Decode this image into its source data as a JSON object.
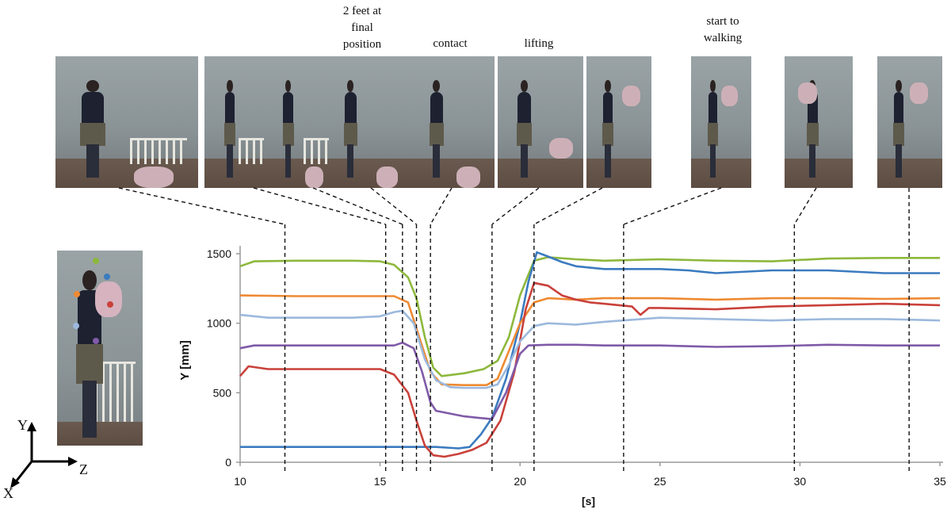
{
  "phase_labels": [
    {
      "id": "feet",
      "text": "2 feet at\nfinal\nposition"
    },
    {
      "id": "contact",
      "text": "contact"
    },
    {
      "id": "lifting",
      "text": "lifting"
    },
    {
      "id": "walking",
      "text": "start to\nwalking"
    }
  ],
  "axes_icon": {
    "y": "Y",
    "x": "X",
    "z": "Z"
  },
  "marker_colors": [
    "#8db83c",
    "#3b7bbf",
    "#ee8a33",
    "#c9413a",
    "#9cb9dd",
    "#7f5aa8"
  ],
  "chart_data": {
    "type": "line",
    "title": "",
    "xlabel": "[s]",
    "ylabel": "Y [mm]",
    "xlim": [
      10,
      35
    ],
    "ylim": [
      0,
      1500
    ],
    "x_ticks": [
      10,
      15,
      20,
      25,
      30,
      35
    ],
    "y_ticks": [
      0,
      500,
      1000,
      1500
    ],
    "grid": false,
    "legend": "none",
    "event_times": [
      11.6,
      15.2,
      15.8,
      16.3,
      16.8,
      19.0,
      20.5,
      23.7,
      29.8,
      33.9
    ],
    "series": [
      {
        "color": "#8db83c",
        "points": [
          [
            10,
            1410
          ],
          [
            10.5,
            1445
          ],
          [
            12,
            1450
          ],
          [
            14,
            1450
          ],
          [
            15,
            1445
          ],
          [
            15.5,
            1420
          ],
          [
            16,
            1330
          ],
          [
            16.3,
            1180
          ],
          [
            16.6,
            900
          ],
          [
            16.9,
            680
          ],
          [
            17.2,
            620
          ],
          [
            18,
            640
          ],
          [
            18.7,
            670
          ],
          [
            19.2,
            730
          ],
          [
            19.6,
            900
          ],
          [
            20,
            1200
          ],
          [
            20.5,
            1450
          ],
          [
            21,
            1475
          ],
          [
            22,
            1460
          ],
          [
            23,
            1450
          ],
          [
            25,
            1460
          ],
          [
            27,
            1450
          ],
          [
            29,
            1445
          ],
          [
            31,
            1465
          ],
          [
            33,
            1470
          ],
          [
            35,
            1470
          ]
        ]
      },
      {
        "color": "#3b7bbf",
        "points": [
          [
            10,
            110
          ],
          [
            12,
            110
          ],
          [
            15,
            110
          ],
          [
            16,
            110
          ],
          [
            17,
            110
          ],
          [
            17.8,
            100
          ],
          [
            18.2,
            110
          ],
          [
            18.6,
            200
          ],
          [
            19,
            320
          ],
          [
            19.5,
            600
          ],
          [
            20,
            1000
          ],
          [
            20.3,
            1300
          ],
          [
            20.6,
            1510
          ],
          [
            21,
            1480
          ],
          [
            21.5,
            1440
          ],
          [
            22,
            1410
          ],
          [
            23,
            1390
          ],
          [
            25,
            1390
          ],
          [
            26,
            1380
          ],
          [
            27,
            1360
          ],
          [
            29,
            1380
          ],
          [
            31,
            1380
          ],
          [
            33,
            1360
          ],
          [
            35,
            1360
          ]
        ]
      },
      {
        "color": "#ee8a33",
        "points": [
          [
            10,
            1200
          ],
          [
            12,
            1195
          ],
          [
            14,
            1195
          ],
          [
            15.5,
            1195
          ],
          [
            16,
            1150
          ],
          [
            16.4,
            900
          ],
          [
            16.8,
            650
          ],
          [
            17.2,
            560
          ],
          [
            18,
            555
          ],
          [
            18.8,
            555
          ],
          [
            19.2,
            600
          ],
          [
            19.6,
            800
          ],
          [
            20,
            1000
          ],
          [
            20.5,
            1150
          ],
          [
            21,
            1180
          ],
          [
            22,
            1170
          ],
          [
            23,
            1180
          ],
          [
            25,
            1180
          ],
          [
            27,
            1170
          ],
          [
            29,
            1180
          ],
          [
            31,
            1180
          ],
          [
            33,
            1175
          ],
          [
            35,
            1180
          ]
        ]
      },
      {
        "color": "#c9413a",
        "points": [
          [
            10,
            620
          ],
          [
            10.3,
            690
          ],
          [
            11,
            670
          ],
          [
            12,
            670
          ],
          [
            15,
            670
          ],
          [
            15.5,
            630
          ],
          [
            16,
            500
          ],
          [
            16.3,
            300
          ],
          [
            16.6,
            120
          ],
          [
            16.9,
            50
          ],
          [
            17.3,
            40
          ],
          [
            17.8,
            60
          ],
          [
            18.3,
            90
          ],
          [
            18.8,
            140
          ],
          [
            19.3,
            300
          ],
          [
            19.8,
            650
          ],
          [
            20.2,
            1100
          ],
          [
            20.5,
            1290
          ],
          [
            21,
            1270
          ],
          [
            21.5,
            1200
          ],
          [
            22,
            1170
          ],
          [
            22.5,
            1150
          ],
          [
            23,
            1140
          ],
          [
            24,
            1120
          ],
          [
            24.3,
            1060
          ],
          [
            24.6,
            1110
          ],
          [
            25,
            1110
          ],
          [
            27,
            1100
          ],
          [
            29,
            1120
          ],
          [
            31,
            1130
          ],
          [
            33,
            1140
          ],
          [
            35,
            1130
          ]
        ]
      },
      {
        "color": "#9cb9dd",
        "points": [
          [
            10,
            1060
          ],
          [
            11,
            1040
          ],
          [
            14,
            1040
          ],
          [
            15,
            1050
          ],
          [
            15.5,
            1080
          ],
          [
            15.8,
            1090
          ],
          [
            16.2,
            1000
          ],
          [
            16.6,
            740
          ],
          [
            17,
            590
          ],
          [
            17.5,
            540
          ],
          [
            18,
            535
          ],
          [
            18.8,
            535
          ],
          [
            19.2,
            560
          ],
          [
            19.6,
            700
          ],
          [
            20,
            870
          ],
          [
            20.5,
            980
          ],
          [
            21,
            1000
          ],
          [
            22,
            990
          ],
          [
            23,
            1010
          ],
          [
            25,
            1040
          ],
          [
            27,
            1030
          ],
          [
            29,
            1020
          ],
          [
            31,
            1030
          ],
          [
            33,
            1030
          ],
          [
            35,
            1020
          ]
        ]
      },
      {
        "color": "#7f5aa8",
        "points": [
          [
            10,
            820
          ],
          [
            10.5,
            840
          ],
          [
            12,
            840
          ],
          [
            14,
            840
          ],
          [
            15.5,
            840
          ],
          [
            15.8,
            860
          ],
          [
            16.2,
            820
          ],
          [
            16.5,
            650
          ],
          [
            16.8,
            430
          ],
          [
            17,
            370
          ],
          [
            17.5,
            350
          ],
          [
            18,
            330
          ],
          [
            18.5,
            320
          ],
          [
            19,
            310
          ],
          [
            19.5,
            500
          ],
          [
            20,
            780
          ],
          [
            20.3,
            840
          ],
          [
            21,
            845
          ],
          [
            22,
            845
          ],
          [
            23,
            840
          ],
          [
            25,
            840
          ],
          [
            27,
            830
          ],
          [
            29,
            835
          ],
          [
            31,
            845
          ],
          [
            33,
            840
          ],
          [
            35,
            840
          ]
        ]
      }
    ]
  }
}
